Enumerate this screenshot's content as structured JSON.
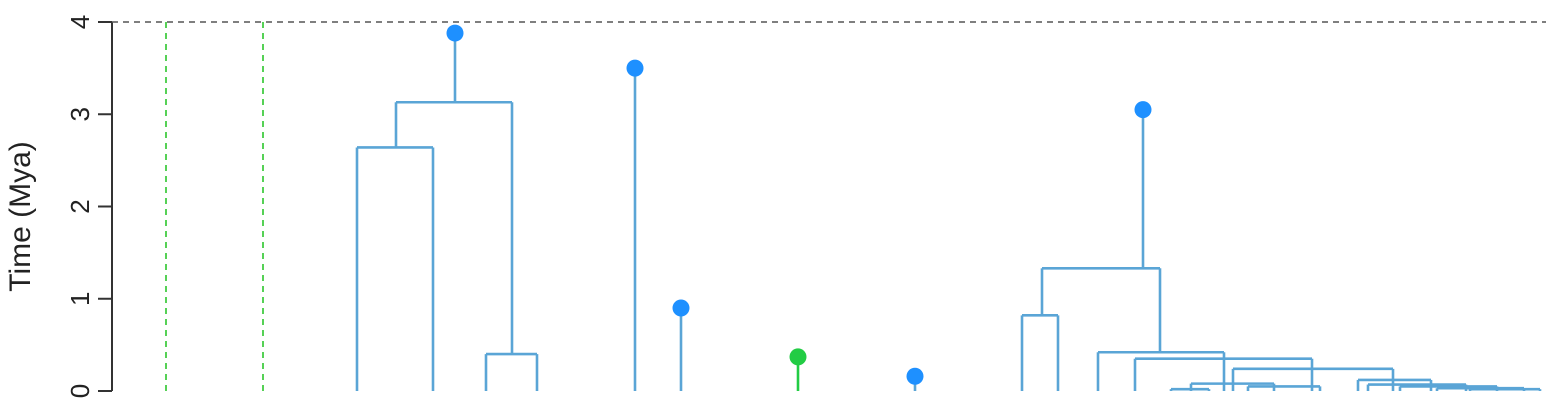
{
  "chart_data": {
    "type": "dendrogram",
    "ylabel": "Time (Mya)",
    "ylim": [
      0,
      4
    ],
    "yticks": [
      "0",
      "1",
      "2",
      "3",
      "4"
    ],
    "reference_line_y": 4,
    "colors": {
      "branch": "#5aa5d6",
      "tip_blue": "#1e90ff",
      "tip_green": "#22cc44",
      "green_dash": "#44cc44",
      "ref_dash": "#555555",
      "axis": "#333333"
    },
    "green_dashed_verticals": [
      {
        "name": "green-dashed-line-1"
      },
      {
        "name": "green-dashed-line-2"
      }
    ],
    "clades": [
      {
        "name": "clade-1",
        "root_age": 3.88,
        "split_age": 3.13,
        "children": [
          {
            "split_age": 2.64,
            "leaves": 2
          },
          {
            "split_age": 0.4,
            "leaves": 2
          }
        ]
      },
      {
        "name": "clade-2",
        "root_age": 3.5,
        "leaves": 1
      },
      {
        "name": "clade-3",
        "root_age": 0.9,
        "leaves": 1
      },
      {
        "name": "clade-4",
        "root_age": 0.37,
        "leaves": 1,
        "color": "green"
      },
      {
        "name": "clade-5",
        "root_age": 0.16,
        "leaves": 1
      },
      {
        "name": "clade-6",
        "root_age": 3.05,
        "split_age": 1.33,
        "children": [
          {
            "split_age": 0.82,
            "leaves": 2
          },
          {
            "split_age": 0.42,
            "leaves": 7
          }
        ]
      }
    ]
  }
}
